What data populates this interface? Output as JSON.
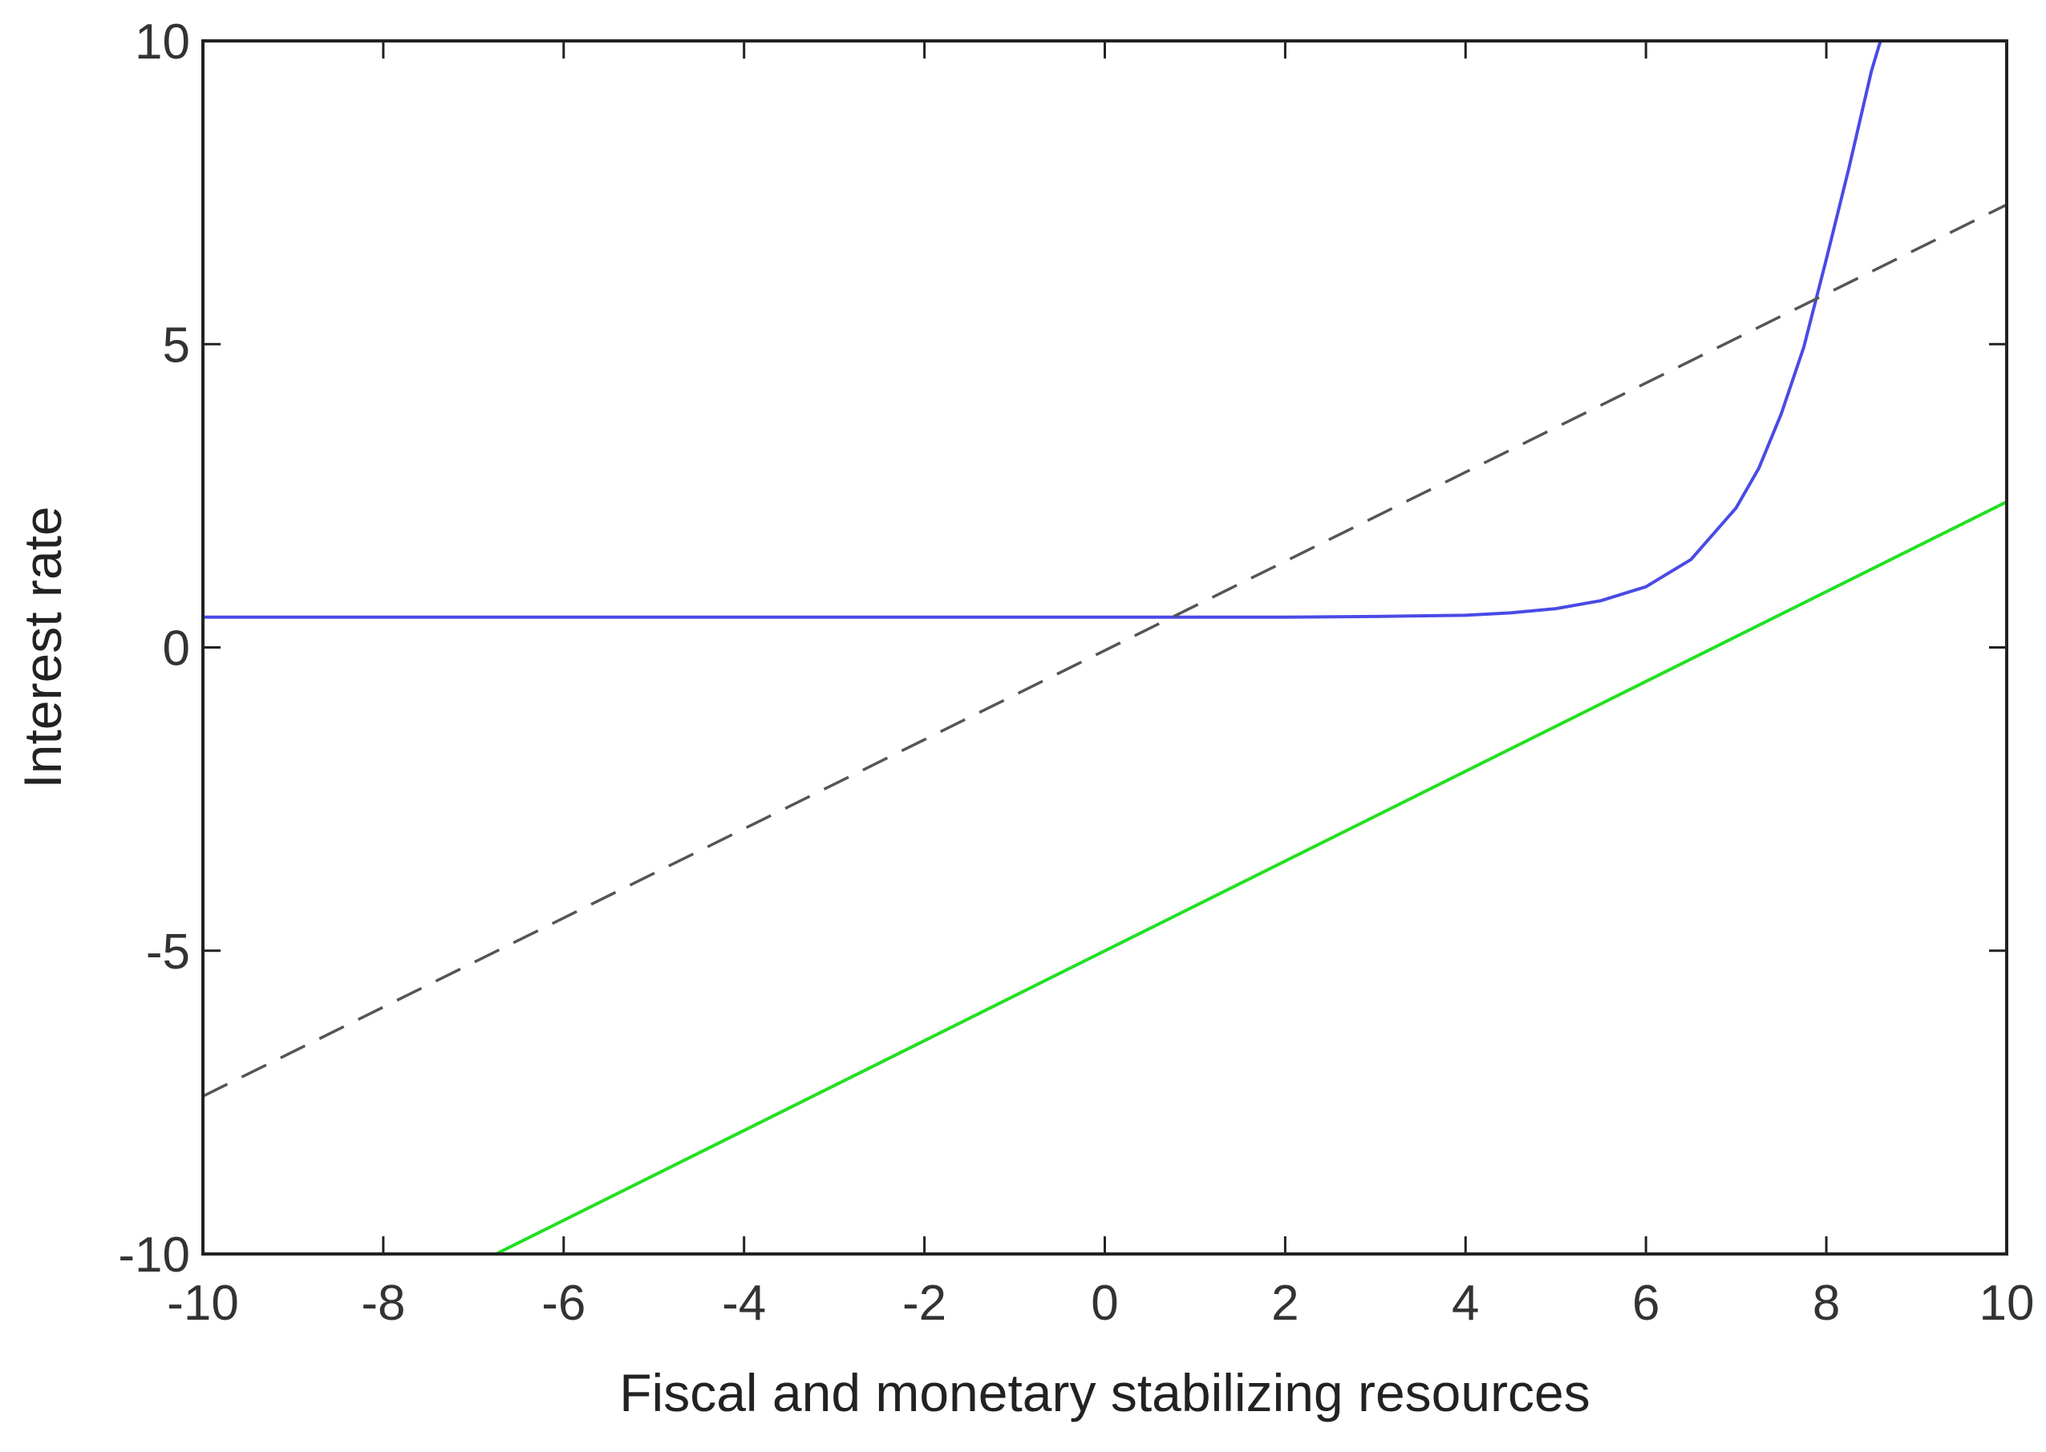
{
  "chart_data": {
    "type": "line",
    "title": "",
    "xlabel": "Fiscal and monetary stabilizing resources",
    "ylabel": "Interest rate",
    "xlim": [
      -10,
      10
    ],
    "ylim": [
      -10,
      10
    ],
    "x_ticks": [
      -10,
      -8,
      -6,
      -4,
      -2,
      0,
      2,
      4,
      6,
      8,
      10
    ],
    "y_ticks": [
      -10,
      -5,
      0,
      5,
      10
    ],
    "grid": false,
    "legend": "none",
    "series": [
      {
        "style": "solid",
        "color": "#4a4ae6",
        "x": [
          -10,
          -6,
          -2,
          0,
          2,
          3,
          4,
          4.5,
          5,
          5.5,
          6,
          6.5,
          7,
          7.25,
          7.5,
          7.75,
          8,
          8.25,
          8.5,
          8.6
        ],
        "y": [
          0.5,
          0.5,
          0.5,
          0.5,
          0.5,
          0.51,
          0.53,
          0.57,
          0.64,
          0.77,
          1.0,
          1.45,
          2.3,
          2.95,
          3.85,
          4.95,
          6.4,
          7.9,
          9.5,
          10
        ]
      },
      {
        "style": "dashed",
        "color": "#555555",
        "x": [
          -10,
          10
        ],
        "y": [
          -7.4,
          7.3
        ]
      },
      {
        "style": "solid",
        "color": "#22e022",
        "x": [
          -6.75,
          10
        ],
        "y": [
          -10,
          2.4
        ]
      }
    ]
  }
}
